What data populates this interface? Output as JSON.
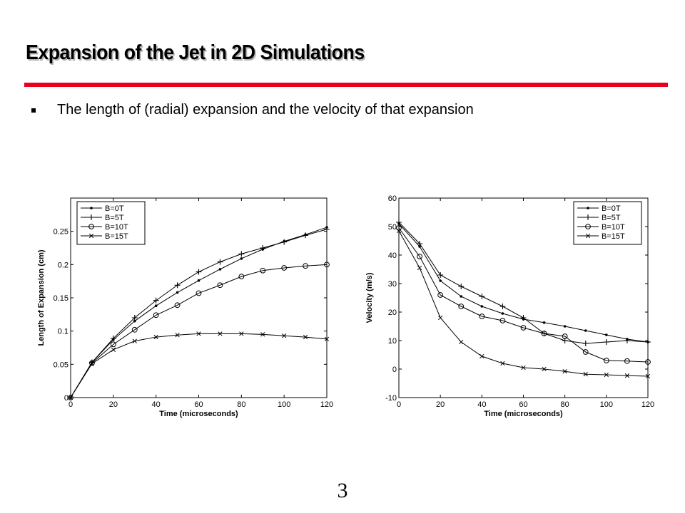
{
  "slide": {
    "title": "Expansion of the Jet in 2D Simulations",
    "bullet": "The length of (radial) expansion and the velocity of that expansion",
    "page_number": "3",
    "accent_color": "#e8001c"
  },
  "chart_data": [
    {
      "type": "line",
      "title": "",
      "xlabel": "Time (microseconds)",
      "ylabel": "Length of Expansion (cm)",
      "xlim": [
        0,
        120
      ],
      "ylim": [
        0,
        0.3
      ],
      "xticks": [
        "0",
        "20",
        "40",
        "60",
        "80",
        "100",
        "120"
      ],
      "yticks": [
        "0",
        "0.05",
        "0.1",
        "0.15",
        "0.2",
        "0.25"
      ],
      "legend_position": "top-left",
      "grid": false,
      "x": [
        0,
        10,
        20,
        30,
        40,
        50,
        60,
        70,
        80,
        90,
        100,
        110,
        120
      ],
      "series": [
        {
          "name": "B=0T",
          "marker": "dot",
          "values": [
            0,
            0.053,
            0.087,
            0.115,
            0.138,
            0.158,
            0.176,
            0.193,
            0.209,
            0.223,
            0.235,
            0.245,
            0.256
          ]
        },
        {
          "name": "B=5T",
          "marker": "plus",
          "values": [
            0,
            0.053,
            0.089,
            0.12,
            0.146,
            0.169,
            0.189,
            0.204,
            0.216,
            0.225,
            0.234,
            0.244,
            0.253
          ]
        },
        {
          "name": "B=10T",
          "marker": "circle",
          "values": [
            0,
            0.052,
            0.08,
            0.102,
            0.124,
            0.139,
            0.157,
            0.169,
            0.182,
            0.191,
            0.195,
            0.198,
            0.2
          ]
        },
        {
          "name": "B=15T",
          "marker": "x",
          "values": [
            0,
            0.051,
            0.072,
            0.085,
            0.091,
            0.094,
            0.096,
            0.096,
            0.096,
            0.095,
            0.093,
            0.091,
            0.088
          ]
        }
      ]
    },
    {
      "type": "line",
      "title": "",
      "xlabel": "Time (microseconds)",
      "ylabel": "Velocity (m/s)",
      "xlim": [
        0,
        120
      ],
      "ylim": [
        -10,
        60
      ],
      "xticks": [
        "0",
        "20",
        "40",
        "60",
        "80",
        "100",
        "120"
      ],
      "yticks": [
        "-10",
        "0",
        "10",
        "20",
        "30",
        "40",
        "50",
        "60"
      ],
      "legend_position": "top-right",
      "grid": false,
      "x": [
        0,
        10,
        20,
        30,
        40,
        50,
        60,
        70,
        80,
        90,
        100,
        110,
        120
      ],
      "series": [
        {
          "name": "B=0T",
          "marker": "dot",
          "values": [
            51,
            43,
            31,
            25.5,
            22,
            19.5,
            17.5,
            16.3,
            15,
            13.5,
            12,
            10.5,
            9.5
          ]
        },
        {
          "name": "B=5T",
          "marker": "plus",
          "values": [
            51.5,
            44,
            33,
            29,
            25.5,
            22,
            18,
            12.5,
            10,
            9,
            9.5,
            10,
            9.5
          ]
        },
        {
          "name": "B=10T",
          "marker": "circle",
          "values": [
            49.5,
            39.5,
            26,
            22,
            18.5,
            17,
            14.5,
            12.5,
            11.5,
            6,
            3,
            2.8,
            2.5
          ]
        },
        {
          "name": "B=15T",
          "marker": "x",
          "values": [
            48.5,
            35.5,
            18,
            9.5,
            4.5,
            2,
            0.5,
            0,
            -0.8,
            -1.8,
            -2,
            -2.3,
            -2.5
          ]
        }
      ]
    }
  ]
}
